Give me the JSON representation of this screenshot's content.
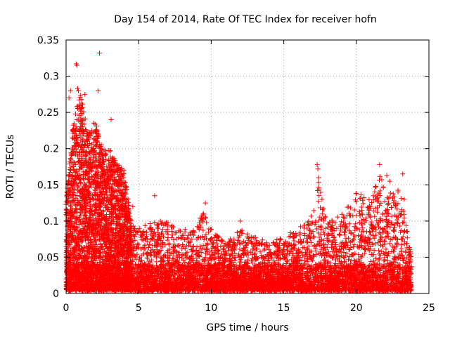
{
  "chart_data": {
    "type": "scatter",
    "title": "Day 154 of 2014, Rate Of TEC Index for receiver hofn",
    "xlabel": "GPS time / hours",
    "ylabel": "ROTI / TECUs",
    "xlim": [
      0,
      25
    ],
    "ylim": [
      0,
      0.35
    ],
    "xticks": [
      0,
      5,
      10,
      15,
      20,
      25
    ],
    "xtick_labels": [
      "0",
      "5",
      "10",
      "15",
      "20",
      "25"
    ],
    "yticks": [
      0,
      0.05,
      0.1,
      0.15,
      0.2,
      0.25,
      0.3,
      0.35
    ],
    "ytick_labels": [
      "0",
      "0.05",
      "0.1",
      "0.15",
      "0.2",
      "0.25",
      "0.3",
      "0.35"
    ],
    "grid": true,
    "marker": "+",
    "color": "#ff0000",
    "x_range_of_data": [
      0,
      23.8
    ],
    "envelope": {
      "description": "approximate upper envelope of the point cloud (hour, ROTI)",
      "x": [
        0,
        0.5,
        1,
        1.5,
        2,
        2.5,
        3,
        3.5,
        4,
        4.5,
        5,
        6,
        7,
        8,
        9,
        9.5,
        10,
        11,
        12,
        13,
        14,
        15,
        16,
        17,
        17.3,
        18,
        19,
        20,
        21,
        21.7,
        22,
        23,
        23.8
      ],
      "y": [
        0.13,
        0.24,
        0.28,
        0.22,
        0.24,
        0.2,
        0.2,
        0.18,
        0.17,
        0.1,
        0.09,
        0.1,
        0.1,
        0.09,
        0.09,
        0.12,
        0.09,
        0.07,
        0.09,
        0.08,
        0.07,
        0.08,
        0.09,
        0.11,
        0.17,
        0.1,
        0.11,
        0.14,
        0.13,
        0.17,
        0.14,
        0.15,
        0.05
      ]
    },
    "notable_points": {
      "x": [
        0.7,
        0.75,
        0.8,
        0.85,
        0.2,
        0.3,
        1.3,
        2.3,
        2.2,
        3.1,
        17.3,
        17.35,
        17.4,
        21.6,
        22.1,
        22.3,
        23.2,
        23.3,
        6.1,
        4.6,
        9.6,
        12.0
      ],
      "y": [
        0.317,
        0.315,
        0.283,
        0.28,
        0.27,
        0.28,
        0.275,
        0.332,
        0.28,
        0.24,
        0.178,
        0.172,
        0.16,
        0.178,
        0.163,
        0.155,
        0.165,
        0.13,
        0.135,
        0.12,
        0.125,
        0.1
      ]
    }
  }
}
